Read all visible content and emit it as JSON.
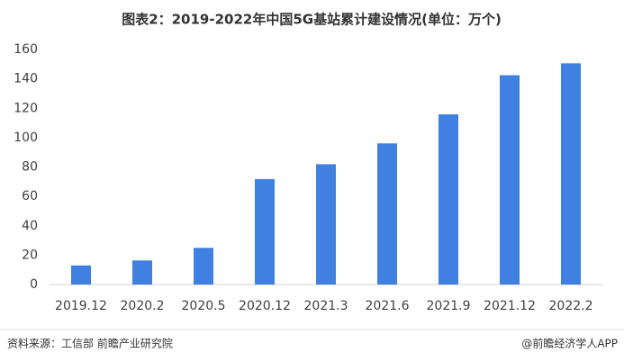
{
  "chart_data": {
    "type": "bar",
    "title": "图表2：2019-2022年中国5G基站累计建设情况(单位：万个)",
    "categories": [
      "2019.12",
      "2020.2",
      "2020.5",
      "2020.12",
      "2021.3",
      "2021.6",
      "2021.9",
      "2021.12",
      "2022.2"
    ],
    "values": [
      13,
      16.4,
      25,
      71.8,
      81.9,
      96.1,
      115.9,
      142.5,
      150.6
    ],
    "color": "#3f80e0",
    "ylim": [
      0,
      160
    ],
    "yticks": [
      0,
      20,
      40,
      60,
      80,
      100,
      120,
      140,
      160
    ],
    "grid": false,
    "source": "资料来源：工信部 前瞻产业研究院",
    "credit": "@前瞻经济学人APP"
  }
}
